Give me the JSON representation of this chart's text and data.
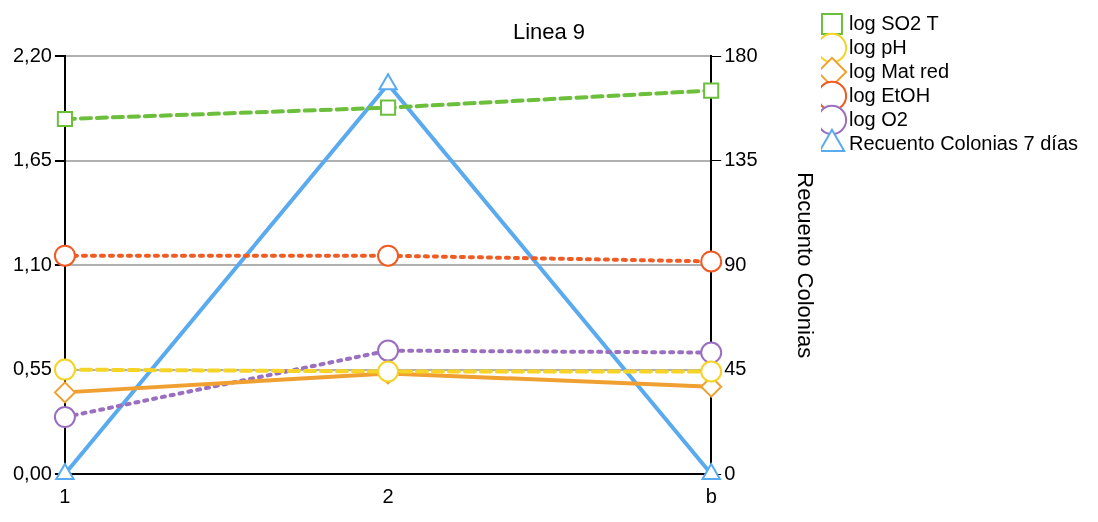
{
  "chart_data": {
    "type": "line",
    "title": "Linea 9",
    "y2label": "Recuento Colonias",
    "categories": [
      "1",
      "2",
      "b"
    ],
    "series": [
      {
        "name": "log SO2 T",
        "color": "#6bbf3b",
        "marker": "square",
        "line_style": "dashed",
        "values": [
          1.87,
          1.93,
          2.02
        ]
      },
      {
        "name": "log pH",
        "color": "#f5d327",
        "marker": "circle",
        "line_style": "dashed",
        "values": [
          0.55,
          0.54,
          0.54
        ]
      },
      {
        "name": "log Mat red",
        "color": "#f0a030",
        "marker": "diamond",
        "line_style": "solid",
        "values": [
          0.43,
          0.53,
          0.46
        ]
      },
      {
        "name": "log EtOH",
        "color": "#f05a23",
        "marker": "circle",
        "line_style": "dotted",
        "values": [
          1.15,
          1.15,
          1.12
        ]
      },
      {
        "name": "log O2",
        "color": "#9b6fbf",
        "marker": "circle",
        "line_style": "dotted",
        "values": [
          0.3,
          0.65,
          0.64
        ]
      },
      {
        "name": "Recuento Colonias 7 días",
        "color": "#5aaaf0",
        "marker": "triangle",
        "line_style": "solid",
        "axis": "y2",
        "values": [
          0,
          168,
          0
        ]
      }
    ],
    "ylim": [
      0,
      2.2
    ],
    "yticks": [
      {
        "value": 0,
        "label": "0,00"
      },
      {
        "value": 0.55,
        "label": "0,55"
      },
      {
        "value": 1.1,
        "label": "1,10"
      },
      {
        "value": 1.65,
        "label": "1,65"
      },
      {
        "value": 2.2,
        "label": "2,20"
      }
    ],
    "y2lim": [
      0,
      180
    ],
    "y2ticks": [
      0,
      45,
      90,
      135,
      180
    ],
    "grid": "y",
    "legend": "right"
  }
}
